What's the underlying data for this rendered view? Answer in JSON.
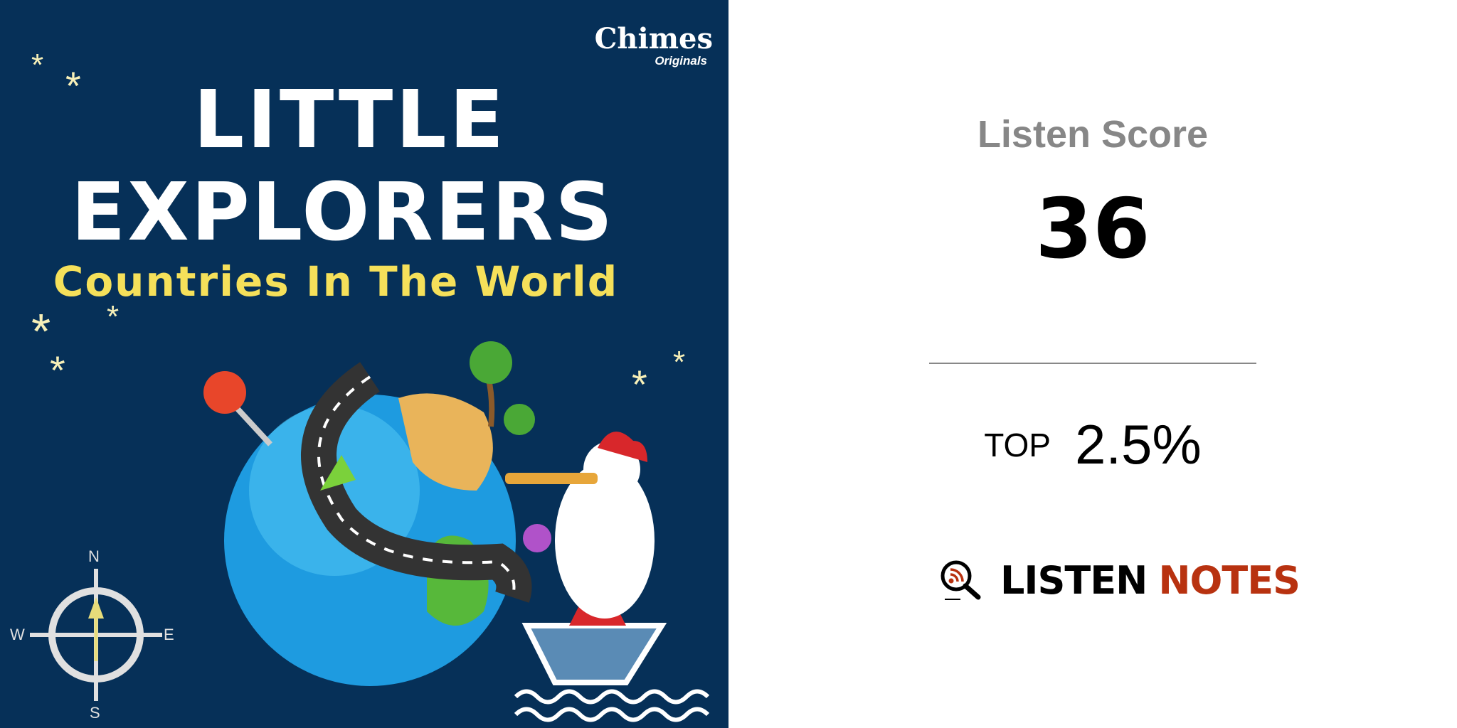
{
  "cover": {
    "brand": "Chimes",
    "brand_sub": "Originals",
    "title_line1": "LITTLE",
    "title_line2": "EXPLORERS",
    "subtitle": "Countries In The World",
    "compass": {
      "n": "N",
      "e": "E",
      "s": "S",
      "w": "W"
    },
    "colors": {
      "background": "#063058",
      "subtitle": "#f5e05a"
    }
  },
  "score": {
    "label": "Listen Score",
    "value": "36",
    "top_label": "TOP",
    "top_value": "2.5%"
  },
  "logo": {
    "word1": "LISTEN",
    "word2": "NOTES",
    "colors": {
      "word1": "#000000",
      "word2": "#b83210"
    }
  }
}
